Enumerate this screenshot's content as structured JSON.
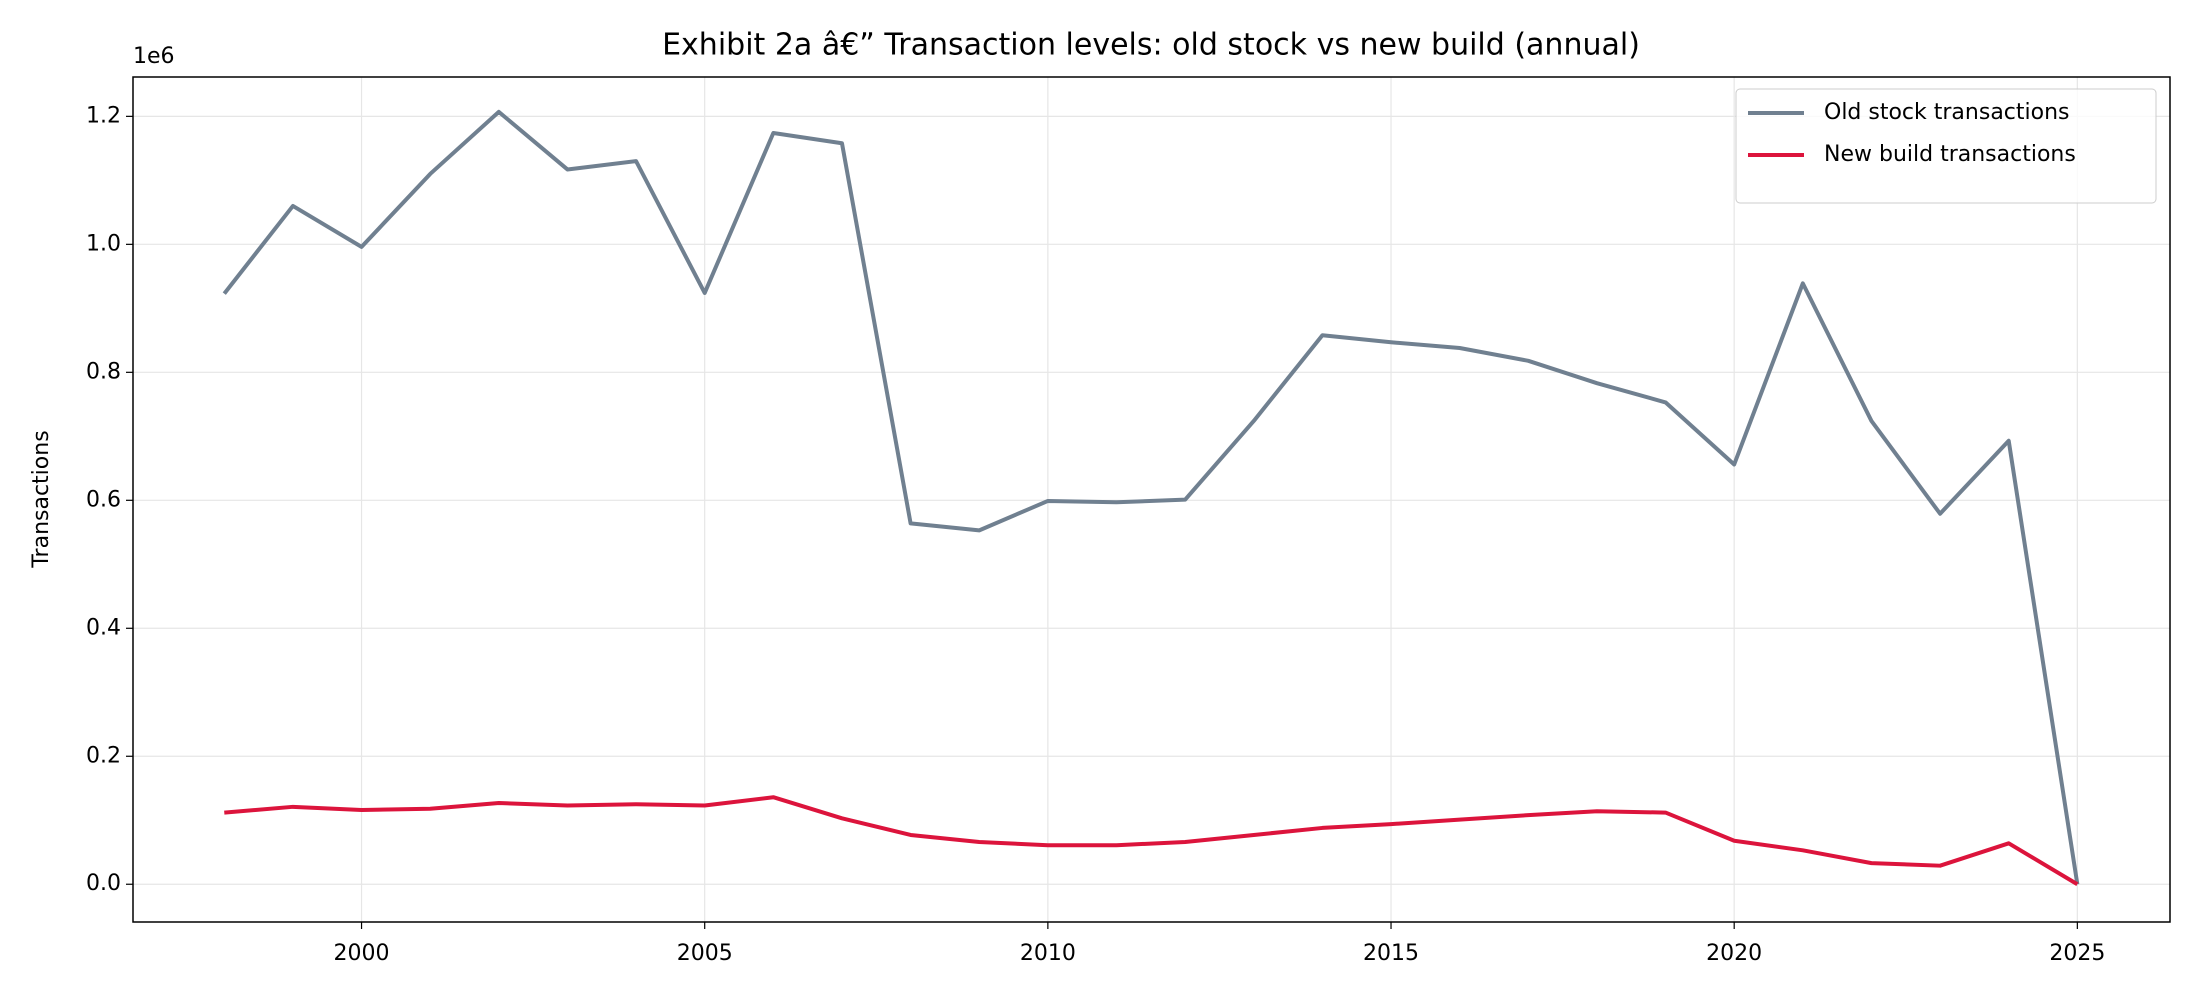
{
  "chart_data": {
    "type": "line",
    "title": "Exhibit 2a â€” Transaction levels: old stock vs new build (annual)",
    "y_label": "Transactions",
    "y_offset_label": "1e6",
    "x": [
      1998,
      1999,
      2000,
      2001,
      2002,
      2003,
      2004,
      2005,
      2006,
      2007,
      2008,
      2009,
      2010,
      2011,
      2012,
      2013,
      2014,
      2015,
      2016,
      2017,
      2018,
      2019,
      2020,
      2021,
      2022,
      2023,
      2024,
      2025
    ],
    "series": [
      {
        "name": "Old stock transactions",
        "color": "#708090",
        "values": [
          923000,
          1060000,
          996000,
          1110000,
          1207000,
          1117000,
          1130000,
          924000,
          1174000,
          1158000,
          564000,
          553000,
          599000,
          597000,
          601000,
          724000,
          858000,
          847000,
          838000,
          818000,
          783000,
          753000,
          656000,
          939000,
          724000,
          579000,
          693000,
          0
        ]
      },
      {
        "name": "New build transactions",
        "color": "#dc143c",
        "values": [
          112000,
          121000,
          116000,
          118000,
          127000,
          123000,
          125000,
          123000,
          136000,
          103000,
          77000,
          66000,
          61000,
          61000,
          66000,
          77000,
          88000,
          94000,
          101000,
          108000,
          114000,
          112000,
          68000,
          53000,
          33000,
          29000,
          64000,
          0
        ]
      }
    ],
    "xlim": [
      1996.67,
      2026.35
    ],
    "xticks": [
      2000,
      2005,
      2010,
      2015,
      2020,
      2025
    ],
    "ylim": [
      -59000,
      1261500
    ],
    "yticks": [
      {
        "value": 0,
        "label": "0.0"
      },
      {
        "value": 200000,
        "label": "0.2"
      },
      {
        "value": 400000,
        "label": "0.4"
      },
      {
        "value": 600000,
        "label": "0.6"
      },
      {
        "value": 800000,
        "label": "0.8"
      },
      {
        "value": 1000000,
        "label": "1.0"
      },
      {
        "value": 1200000,
        "label": "1.2"
      }
    ],
    "grid": true,
    "legend": "upper right"
  }
}
